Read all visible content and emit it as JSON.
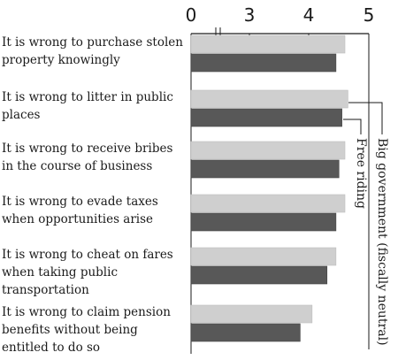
{
  "chart_data": {
    "type": "bar",
    "orientation": "horizontal",
    "categories": [
      "It is wrong to purchase stolen\nproperty knowingly",
      "It is wrong to litter in public\nplaces",
      "It is wrong to receive bribes\nin the course of business",
      "It is wrong to evade taxes\nwhen opportunities arise",
      "It is wrong to cheat on fares\nwhen taking public\ntransportation",
      "It is wrong to claim pension\nbenefits without being\nentitled to do so"
    ],
    "series": [
      {
        "name": "Big government (fiscally neutral)",
        "color": "#cfcfcf",
        "values": [
          4.6,
          4.65,
          4.6,
          4.6,
          4.45,
          4.05
        ]
      },
      {
        "name": "Free riding",
        "color": "#585858",
        "values": [
          4.45,
          4.55,
          4.5,
          4.45,
          4.3,
          3.85
        ]
      }
    ],
    "x_ticks": [
      "0",
      "3",
      "4",
      "5"
    ],
    "axis_break": true,
    "xlim": [
      2,
      5
    ],
    "title": "",
    "xlabel": "",
    "ylabel": ""
  }
}
